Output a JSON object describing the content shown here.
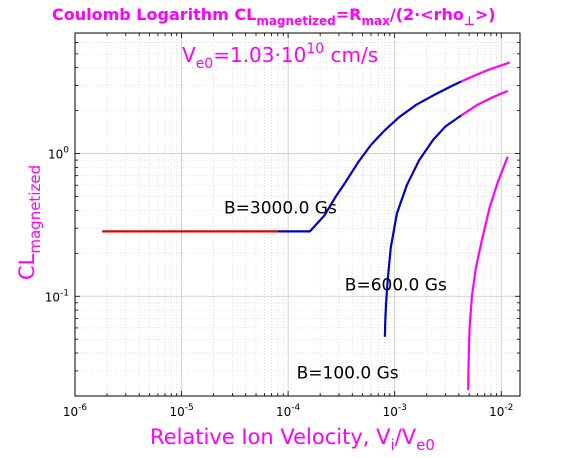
{
  "chart_data": {
    "type": "line",
    "title": {
      "prefix": "Coulomb Logarithm CL",
      "sub1": "magnetized",
      "mid1": "=R",
      "sub2": "max",
      "mid2": "/(2·<rho",
      "sub3": "⊥",
      "suffix": ">)"
    },
    "subtitle": {
      "prefix": "V",
      "sub": "e0",
      "mid": "=1.03·10",
      "sup": "10",
      "suffix": " cm/s"
    },
    "xlabel": {
      "prefix": "Relative Ion Velocity, V",
      "sub1": "i",
      "mid": "/V",
      "sub2": "e0"
    },
    "ylabel": {
      "prefix": "CL",
      "sub": "magnetized"
    },
    "x_scale": "log",
    "y_scale": "log",
    "xlim": [
      1e-06,
      0.015
    ],
    "ylim": [
      0.02,
      7
    ],
    "grid": true,
    "x_ticks": [
      {
        "value": 1e-06,
        "base": "10",
        "exp": "-6"
      },
      {
        "value": 1e-05,
        "base": "10",
        "exp": "-5"
      },
      {
        "value": 0.0001,
        "base": "10",
        "exp": "-4"
      },
      {
        "value": 0.001,
        "base": "10",
        "exp": "-3"
      },
      {
        "value": 0.01,
        "base": "10",
        "exp": "-2"
      }
    ],
    "y_ticks": [
      {
        "value": 0.1,
        "base": "10",
        "exp": "-1"
      },
      {
        "value": 1,
        "base": "10",
        "exp": "0"
      }
    ],
    "colors": {
      "red": "#dd0000",
      "blue": "#0000cc",
      "magenta": "#ff00ff",
      "text": "#ff00ff"
    },
    "series": [
      {
        "annotation": "B=3000.0 Gs",
        "annotation_at": {
          "x": 2.5e-05,
          "y": 0.38
        },
        "segments": [
          {
            "color": "red",
            "points": [
              [
                1.8e-06,
                0.285
              ],
              [
                8e-05,
                0.285
              ]
            ]
          },
          {
            "color": "blue",
            "points": [
              [
                8e-05,
                0.285
              ],
              [
                0.00016,
                0.285
              ],
              [
                0.00022,
                0.37
              ],
              [
                0.00028,
                0.5
              ],
              [
                0.00035,
                0.64
              ],
              [
                0.00046,
                0.88
              ],
              [
                0.0006,
                1.15
              ],
              [
                0.0008,
                1.45
              ],
              [
                0.0011,
                1.8
              ],
              [
                0.0016,
                2.2
              ],
              [
                0.0024,
                2.6
              ],
              [
                0.0035,
                3.0
              ],
              [
                0.0042,
                3.2
              ]
            ]
          },
          {
            "color": "magenta",
            "points": [
              [
                0.0042,
                3.2
              ],
              [
                0.0055,
                3.5
              ],
              [
                0.0075,
                3.85
              ],
              [
                0.01,
                4.15
              ],
              [
                0.012,
                4.35
              ]
            ]
          }
        ]
      },
      {
        "annotation": "B=600.0 Gs",
        "annotation_at": {
          "x": 0.00034,
          "y": 0.11
        },
        "segments": [
          {
            "color": "blue",
            "points": [
              [
                0.00081,
                0.052
              ],
              [
                0.000815,
                0.065
              ],
              [
                0.00083,
                0.09
              ],
              [
                0.00086,
                0.13
              ],
              [
                0.00092,
                0.22
              ],
              [
                0.00105,
                0.38
              ],
              [
                0.0013,
                0.6
              ],
              [
                0.0017,
                0.9
              ],
              [
                0.0023,
                1.25
              ],
              [
                0.003,
                1.55
              ],
              [
                0.0042,
                1.85
              ]
            ]
          },
          {
            "color": "magenta",
            "points": [
              [
                0.0042,
                1.85
              ],
              [
                0.006,
                2.2
              ],
              [
                0.0085,
                2.5
              ],
              [
                0.0115,
                2.75
              ]
            ]
          }
        ]
      },
      {
        "annotation": "B=100.0 Gs",
        "annotation_at": {
          "x": 0.00012,
          "y": 0.0265
        },
        "segments": [
          {
            "color": "magenta",
            "points": [
              [
                0.0049,
                0.022
              ],
              [
                0.00492,
                0.03
              ],
              [
                0.00496,
                0.04
              ],
              [
                0.00505,
                0.06
              ],
              [
                0.0053,
                0.1
              ],
              [
                0.0058,
                0.16
              ],
              [
                0.0066,
                0.25
              ],
              [
                0.0078,
                0.42
              ],
              [
                0.0092,
                0.62
              ],
              [
                0.0105,
                0.8
              ],
              [
                0.0115,
                0.95
              ]
            ]
          }
        ]
      }
    ]
  }
}
